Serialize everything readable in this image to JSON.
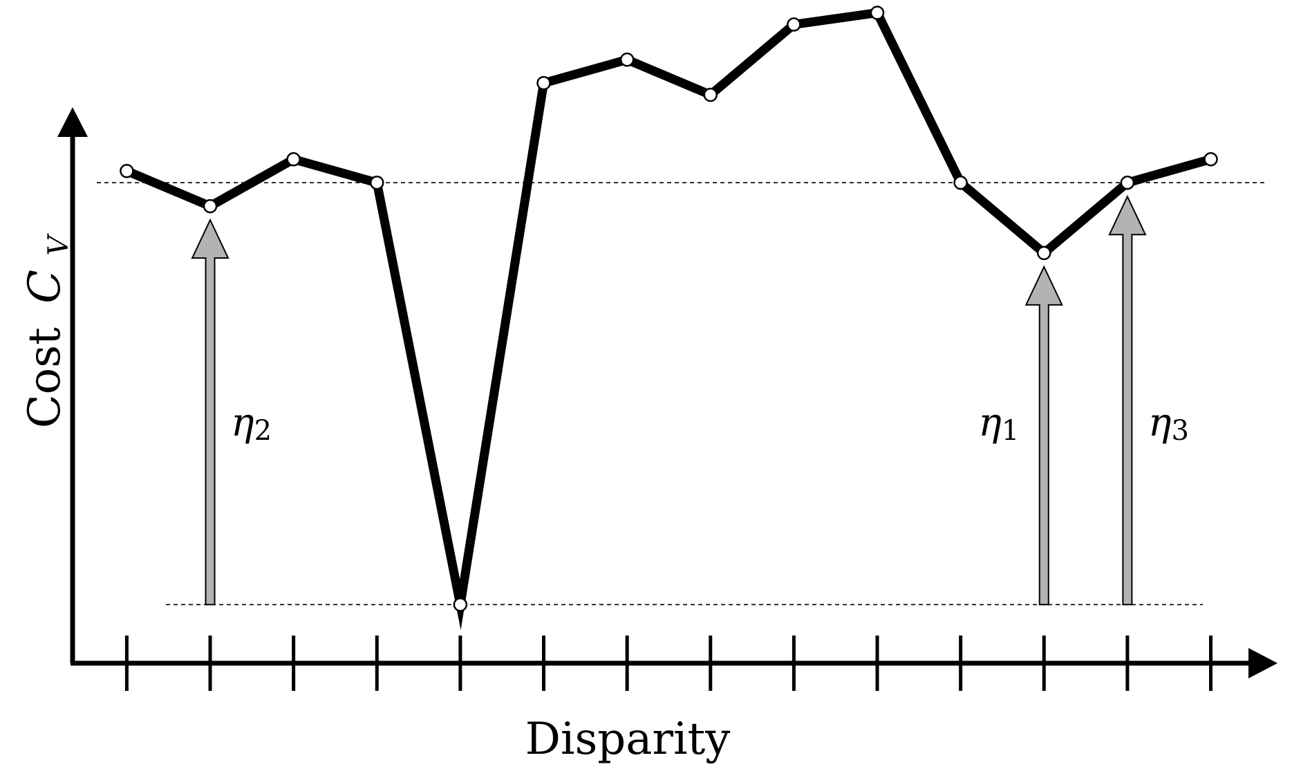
{
  "chart_data": {
    "type": "line",
    "xlabel": "Disparity",
    "ylabel": "Cost",
    "ylabel_symbol": "C",
    "ylabel_subscript": "V",
    "x": [
      1,
      2,
      3,
      4,
      5,
      6,
      7,
      8,
      9,
      10,
      11,
      12,
      13,
      14
    ],
    "y": [
      7.4,
      6.8,
      7.6,
      7.2,
      0.0,
      8.9,
      9.3,
      8.7,
      9.9,
      10.1,
      7.2,
      6.0,
      7.2,
      7.6
    ],
    "xlim": [
      0.35,
      14.8
    ],
    "ylim": [
      -1.0,
      10.2
    ],
    "reference_lines": {
      "upper": 7.2,
      "lower": 0.0,
      "style": "dashed"
    },
    "annotations": [
      {
        "symbol": "η",
        "subscript": "2",
        "x": 2,
        "from": 0.0,
        "to": 6.8
      },
      {
        "symbol": "η",
        "subscript": "1",
        "x": 12,
        "from": 0.0,
        "to": 6.0
      },
      {
        "symbol": "η",
        "subscript": "3",
        "x": 13,
        "from": 0.0,
        "to": 7.2
      }
    ],
    "colors": {
      "line": "#000000",
      "marker_fill": "#ffffff",
      "arrow_fill": "#b3b3b3"
    },
    "grid": false,
    "legend": "none"
  }
}
